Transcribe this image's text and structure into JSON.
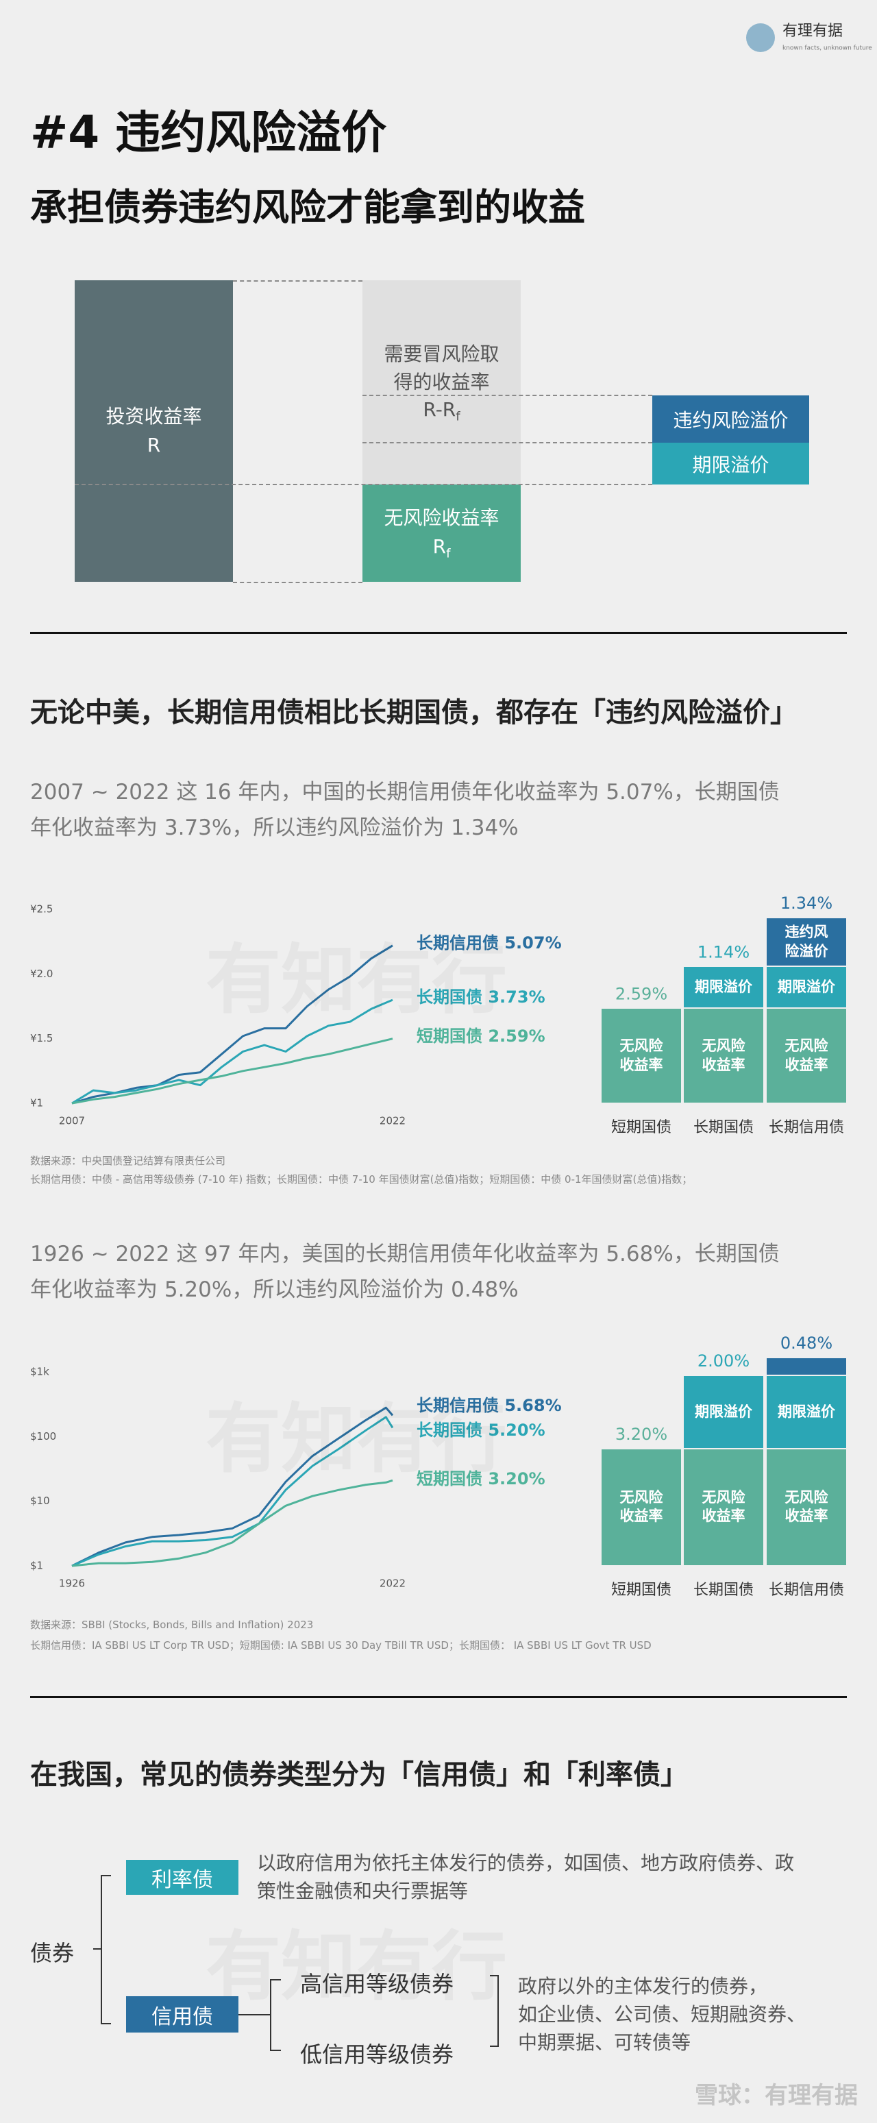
{
  "header": {
    "logo_name": "有理有据",
    "logo_tagline": "known facts, unknown future",
    "title": "#4 违约风险溢价",
    "subtitle": "承担债券违约风险才能拿到的收益"
  },
  "watermark": "有知有行",
  "diagram": {
    "total": {
      "label": "投资收益率",
      "symbol": "R"
    },
    "risky": {
      "label": "需要冒风险取得的收益率",
      "symbol": {
        "main": "R-R",
        "sub": "f"
      }
    },
    "risk_free": {
      "label": "无风险收益率",
      "symbol": {
        "main": "R",
        "sub": "f"
      }
    },
    "default_premium": "违约风险溢价",
    "term_premium": "期限溢价"
  },
  "section1": {
    "heading": "无论中美，长期信用债相比长期国债，都存在「违约风险溢价」",
    "china_text": [
      "2007 ~ 2022 这 16 年内，中国的长期信用债年化收益率为 5.07%，长期国债",
      "年化收益率为 3.73%，所以违约风险溢价为 1.34%"
    ],
    "china_source": [
      "数据来源：中央国债登记结算有限责任公司",
      "长期信用债：中债 - 高信用等级债券 (7-10 年) 指数；长期国债：中债 7-10 年国债财富(总值)指数；短期国债：中债 0-1年国债财富(总值)指数；"
    ],
    "us_text": [
      "1926 ~ 2022 这 97 年内，美国的长期信用债年化收益率为 5.68%，长期国债",
      "年化收益率为 5.20%，所以违约风险溢价为 0.48%"
    ],
    "us_source": [
      "数据来源：SBBI (Stocks, Bonds, Bills and Inflation) 2023",
      "长期信用债：IA SBBI US LT Corp TR USD；短期国债: IA SBBI US 30 Day TBill TR USD；长期国债： IA SBBI US LT Govt TR USD"
    ]
  },
  "section2": {
    "heading": "在我国，常见的债券类型分为「信用债」和「利率债」",
    "root": "债券",
    "rate": {
      "label": "利率债",
      "desc_lines": [
        "以政府信用为依托主体发行的债券，如国债、地方政府债券、政",
        "策性金融债和央行票据等"
      ]
    },
    "credit": {
      "label": "信用债",
      "children": [
        "高信用等级债券",
        "低信用等级债券"
      ],
      "desc_lines": [
        "政府以外的主体发行的债券，",
        "如企业债、公司债、短期融资券、",
        "中期票据、可转债等"
      ]
    }
  },
  "footer": "雪球：有理有据",
  "chart_data": [
    {
      "type": "line",
      "x": [
        2007,
        2008,
        2009,
        2010,
        2011,
        2012,
        2013,
        2014,
        2015,
        2016,
        2017,
        2018,
        2019,
        2020,
        2021,
        2022
      ],
      "xlim": [
        2007,
        2022
      ],
      "xticks": [
        2007,
        2022
      ],
      "ylim": [
        1,
        2.5
      ],
      "yticks": [
        {
          "value": 1,
          "label": "¥1"
        },
        {
          "value": 1.5,
          "label": "¥1.5"
        },
        {
          "value": 2,
          "label": "¥2.0"
        },
        {
          "value": 2.5,
          "label": "¥2.5"
        }
      ],
      "log_scale": false,
      "series": [
        {
          "name": "长期信用债 5.07%",
          "color": "#2a6fa0",
          "values": [
            1.0,
            1.05,
            1.08,
            1.12,
            1.14,
            1.22,
            1.24,
            1.38,
            1.52,
            1.58,
            1.58,
            1.75,
            1.88,
            1.98,
            2.12,
            2.22
          ]
        },
        {
          "name": "长期国债 3.73%",
          "color": "#2ba6b5",
          "values": [
            1.0,
            1.1,
            1.08,
            1.1,
            1.14,
            1.18,
            1.14,
            1.28,
            1.4,
            1.45,
            1.4,
            1.52,
            1.6,
            1.63,
            1.73,
            1.8
          ]
        },
        {
          "name": "短期国债 2.59%",
          "color": "#4fb39a",
          "values": [
            1.0,
            1.03,
            1.05,
            1.08,
            1.11,
            1.15,
            1.18,
            1.21,
            1.25,
            1.28,
            1.31,
            1.35,
            1.38,
            1.42,
            1.46,
            1.5
          ]
        }
      ]
    },
    {
      "type": "bar",
      "stacked": true,
      "categories": [
        "短期国债",
        "长期国债",
        "长期信用债"
      ],
      "series": [
        {
          "name": "无风险收益率",
          "color": "#5bb09a",
          "values": [
            2.59,
            2.59,
            2.59
          ],
          "value_labels": [
            "2.59%",
            null,
            null
          ]
        },
        {
          "name": "期限溢价",
          "color": "#2ba6b5",
          "values": [
            null,
            1.14,
            1.14
          ],
          "value_labels": [
            null,
            "1.14%",
            null
          ]
        },
        {
          "name": "违约风险溢价",
          "color": "#2a6fa0",
          "values": [
            null,
            null,
            1.34
          ],
          "value_labels": [
            null,
            null,
            "1.34%"
          ]
        }
      ]
    },
    {
      "type": "line",
      "x": [
        1926,
        1934,
        1942,
        1950,
        1958,
        1966,
        1974,
        1982,
        1990,
        1998,
        2006,
        2014,
        2020,
        2022
      ],
      "xlim": [
        1926,
        2022
      ],
      "xticks": [
        1926,
        2022
      ],
      "ylim": [
        1,
        1000
      ],
      "yticks": [
        {
          "value": 1,
          "label": "$1"
        },
        {
          "value": 10,
          "label": "$10"
        },
        {
          "value": 100,
          "label": "$100"
        },
        {
          "value": 1000,
          "label": "$1k"
        }
      ],
      "log_scale": true,
      "series": [
        {
          "name": "长期信用债 5.68%",
          "color": "#2a6fa0",
          "values": [
            1,
            1.6,
            2.3,
            2.8,
            3.0,
            3.3,
            3.8,
            6,
            20,
            50,
            95,
            180,
            280,
            213
          ]
        },
        {
          "name": "长期国债 5.20%",
          "color": "#2ba6b5",
          "values": [
            1,
            1.5,
            2.0,
            2.4,
            2.4,
            2.5,
            2.8,
            4.5,
            15,
            35,
            65,
            125,
            200,
            137
          ]
        },
        {
          "name": "短期国债 3.20%",
          "color": "#4fb39a",
          "values": [
            1,
            1.1,
            1.1,
            1.15,
            1.3,
            1.6,
            2.3,
            4.5,
            8.5,
            12,
            15,
            18,
            19.5,
            21
          ]
        }
      ]
    },
    {
      "type": "bar",
      "stacked": true,
      "categories": [
        "短期国债",
        "长期国债",
        "长期信用债"
      ],
      "series": [
        {
          "name": "无风险收益率",
          "color": "#5bb09a",
          "values": [
            3.2,
            3.2,
            3.2
          ],
          "value_labels": [
            "3.20%",
            null,
            null
          ]
        },
        {
          "name": "期限溢价",
          "color": "#2ba6b5",
          "values": [
            null,
            2,
            2
          ],
          "value_labels": [
            null,
            "2.00%",
            null
          ]
        },
        {
          "name": "违约风险溢价",
          "color": "#2a6fa0",
          "values": [
            null,
            null,
            0.48
          ],
          "value_labels": [
            null,
            null,
            "0.48%"
          ]
        }
      ]
    }
  ]
}
